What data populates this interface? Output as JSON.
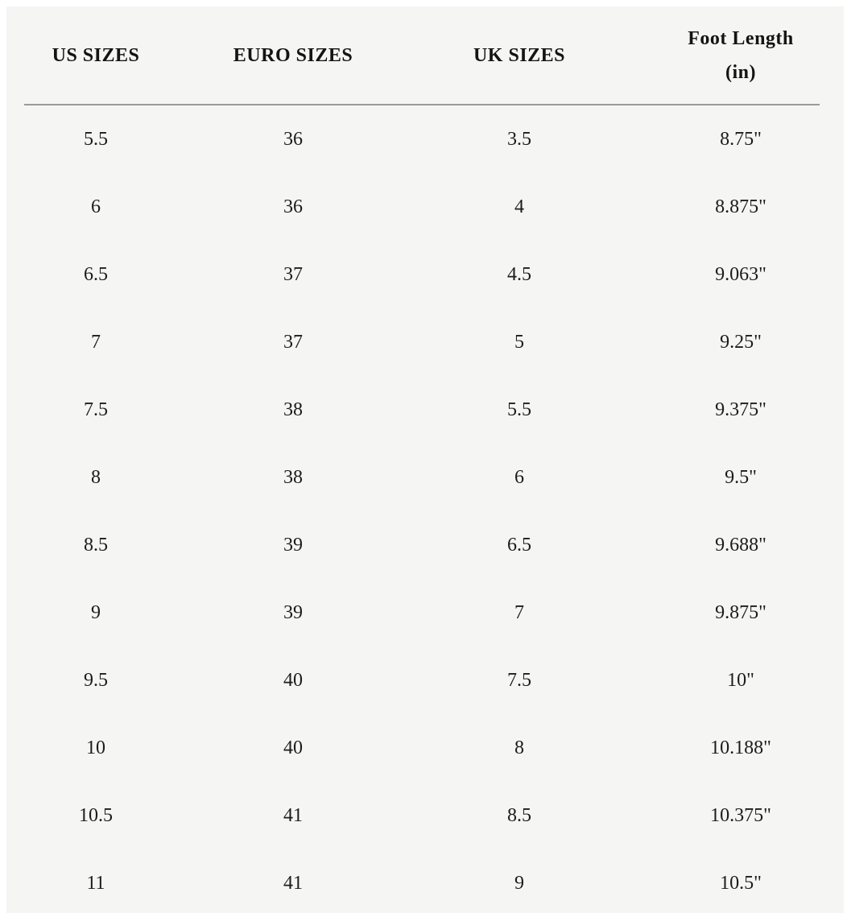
{
  "table": {
    "header": {
      "us": "US SIZES",
      "euro": "EURO SIZES",
      "uk": "UK SIZES",
      "foot_line1": "Foot Length",
      "foot_line2": "(in)"
    },
    "rows": [
      {
        "us": "5.5",
        "euro": "36",
        "uk": "3.5",
        "foot": "8.75\""
      },
      {
        "us": "6",
        "euro": "36",
        "uk": "4",
        "foot": "8.875\""
      },
      {
        "us": "6.5",
        "euro": "37",
        "uk": "4.5",
        "foot": "9.063\""
      },
      {
        "us": "7",
        "euro": "37",
        "uk": "5",
        "foot": "9.25\""
      },
      {
        "us": "7.5",
        "euro": "38",
        "uk": "5.5",
        "foot": "9.375\""
      },
      {
        "us": "8",
        "euro": "38",
        "uk": "6",
        "foot": "9.5\""
      },
      {
        "us": "8.5",
        "euro": "39",
        "uk": "6.5",
        "foot": "9.688\""
      },
      {
        "us": "9",
        "euro": "39",
        "uk": "7",
        "foot": "9.875\""
      },
      {
        "us": "9.5",
        "euro": "40",
        "uk": "7.5",
        "foot": "10\""
      },
      {
        "us": "10",
        "euro": "40",
        "uk": "8",
        "foot": "10.188\""
      },
      {
        "us": "10.5",
        "euro": "41",
        "uk": "8.5",
        "foot": "10.375\""
      },
      {
        "us": "11",
        "euro": "41",
        "uk": "9",
        "foot": "10.5\""
      }
    ]
  },
  "colors": {
    "page_background": "#ffffff",
    "panel_background": "#f5f5f4",
    "text": "#1c1c1c",
    "divider": "#9a9a9e"
  }
}
